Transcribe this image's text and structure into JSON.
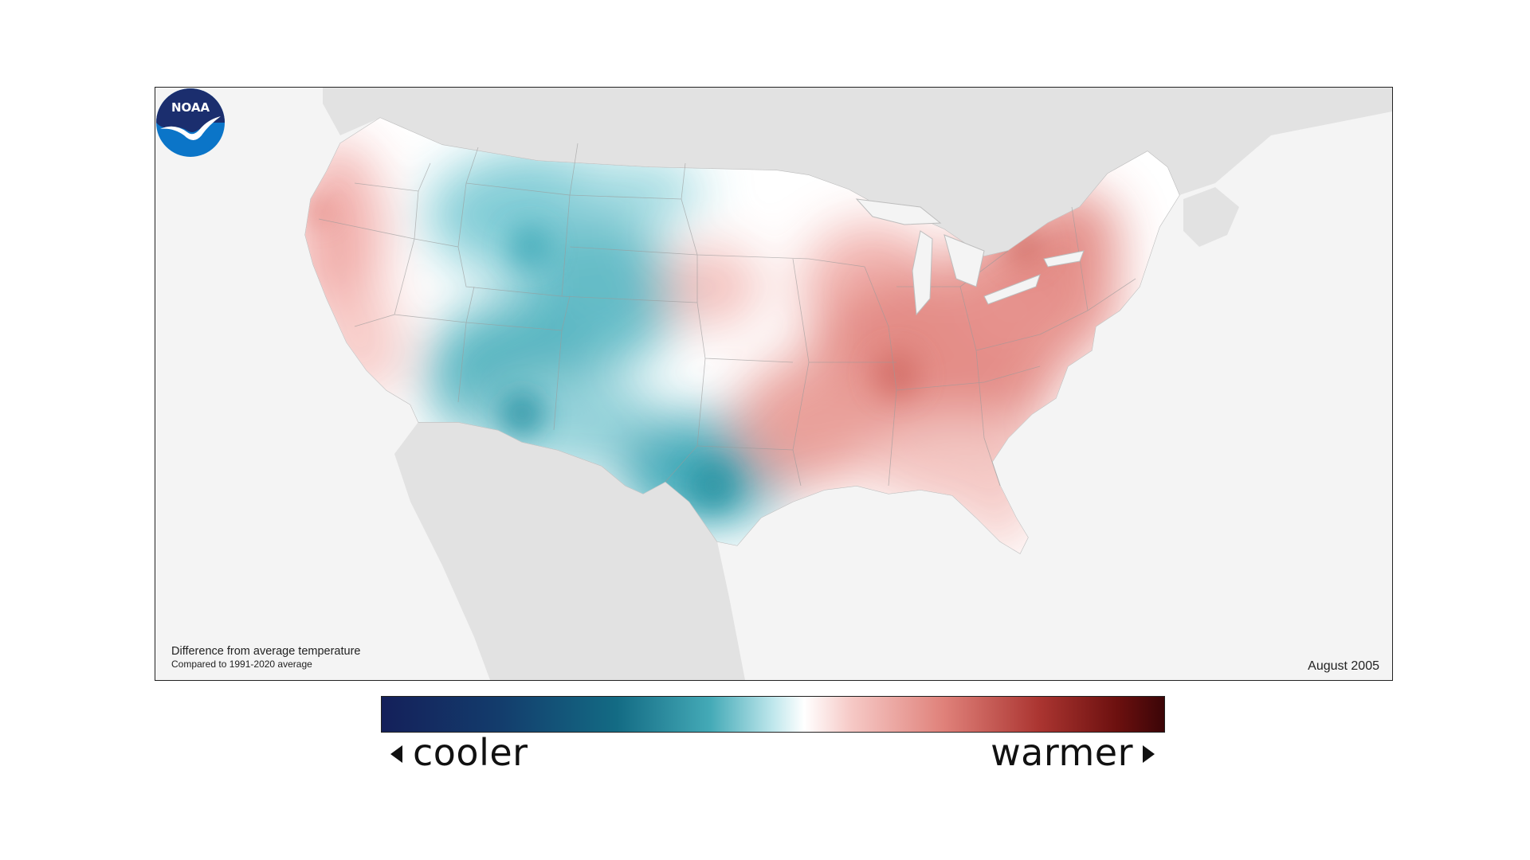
{
  "map": {
    "caption_title": "Difference from average temperature",
    "caption_subtitle": "Compared to 1991-2020 average",
    "date": "August 2005",
    "logo_text": "NOAA",
    "colors": {
      "cooler": "#136b84",
      "neutral": "#ffffff",
      "warmer": "#c24a45",
      "land_outside": "#e2e2e2",
      "water": "#f4f4f4"
    }
  },
  "legend": {
    "cooler_label": "cooler",
    "warmer_label": "warmer"
  }
}
